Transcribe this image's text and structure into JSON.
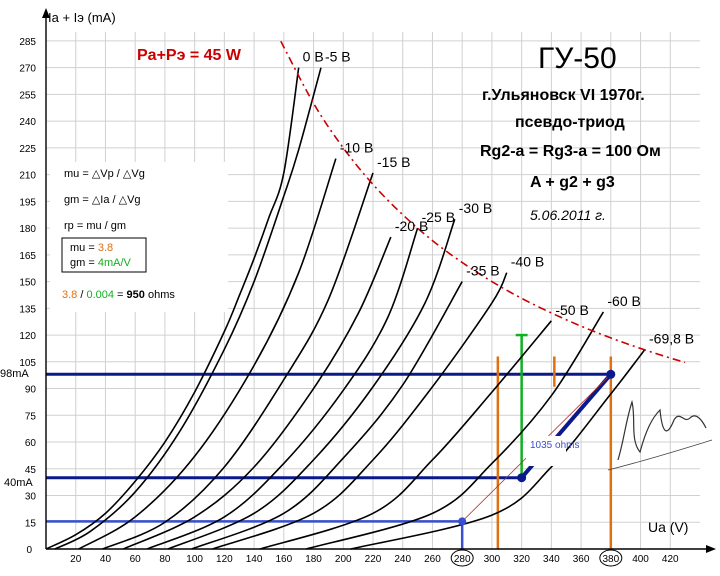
{
  "chart_data": {
    "type": "line",
    "title": "ГУ-50",
    "subtitle_lines": [
      "г.Ульяновск VI 1970г.",
      "псевдо-триод",
      "Rg2-a = Rg3-a = 100 Ом",
      "A + g2 + g3"
    ],
    "date_text": "5.06.2011 г.",
    "xlabel": "Ua (V)",
    "ylabel": "Ia + Iэ (mA)",
    "xlim": [
      0,
      440
    ],
    "ylim": [
      0,
      290
    ],
    "x_ticks": [
      20,
      40,
      60,
      80,
      100,
      120,
      140,
      160,
      180,
      200,
      220,
      240,
      260,
      280,
      300,
      320,
      340,
      360,
      380,
      400,
      420
    ],
    "y_ticks": [
      15,
      30,
      45,
      60,
      75,
      90,
      105,
      120,
      135,
      150,
      165,
      180,
      195,
      210,
      225,
      240,
      255,
      270,
      285
    ],
    "origin_label": "0",
    "circled_x_ticks": [
      280,
      380
    ],
    "grid": true,
    "power_curve": {
      "label": "Pa+Pэ = 45 W",
      "color": "#cc0000",
      "x": [
        158,
        180,
        200,
        220,
        240,
        260,
        280,
        300,
        320,
        340,
        360,
        380,
        400,
        420,
        430
      ],
      "y": [
        284.8,
        250,
        225,
        204.5,
        187.5,
        173,
        160.7,
        150,
        140.6,
        132.4,
        125,
        118.4,
        112.5,
        107.1,
        104.7
      ]
    },
    "series": [
      {
        "name": "0 В",
        "x": [
          0,
          20,
          40,
          60,
          80,
          100,
          120,
          130,
          140,
          150,
          160,
          170
        ],
        "y": [
          0,
          8,
          20,
          38,
          60,
          88,
          122,
          142,
          163,
          186,
          211,
          270
        ]
      },
      {
        "name": "-5 В",
        "x": [
          6,
          30,
          60,
          90,
          120,
          140,
          160,
          170,
          185
        ],
        "y": [
          0,
          10,
          32,
          66,
          112,
          150,
          198,
          224,
          270
        ]
      },
      {
        "name": "-10 В",
        "x": [
          22,
          60,
          100,
          140,
          170,
          195
        ],
        "y": [
          0,
          18,
          52,
          103,
          155,
          219
        ]
      },
      {
        "name": "-15 В",
        "x": [
          38,
          80,
          120,
          160,
          190,
          220
        ],
        "y": [
          0,
          15,
          46,
          95,
          140,
          211
        ]
      },
      {
        "name": "-20 В",
        "x": [
          52,
          100,
          140,
          180,
          210,
          232
        ],
        "y": [
          0,
          18,
          46,
          90,
          132,
          175
        ]
      },
      {
        "name": "-25 В",
        "x": [
          68,
          120,
          160,
          200,
          230,
          250
        ],
        "y": [
          0,
          18,
          48,
          89,
          130,
          180
        ]
      },
      {
        "name": "-30 В",
        "x": [
          82,
          140,
          180,
          220,
          255,
          275
        ],
        "y": [
          0,
          20,
          50,
          91,
          138,
          185
        ]
      },
      {
        "name": "-35 В",
        "x": [
          98,
          160,
          200,
          240,
          280
        ],
        "y": [
          0,
          20,
          51,
          92,
          150
        ]
      },
      {
        "name": "-40 В",
        "x": [
          112,
          180,
          220,
          260,
          300,
          310
        ],
        "y": [
          0,
          20,
          50,
          91,
          138,
          155
        ]
      },
      {
        "name": "-50 В",
        "x": [
          144,
          220,
          260,
          300,
          340
        ],
        "y": [
          0,
          20,
          50,
          88,
          128
        ]
      },
      {
        "name": "-60 В",
        "x": [
          175,
          260,
          300,
          340,
          375
        ],
        "y": [
          0,
          20,
          48,
          86,
          133
        ]
      },
      {
        "name": "-69,8 В",
        "x": [
          205,
          300,
          340,
          380,
          403
        ],
        "y": [
          0,
          19,
          46,
          87,
          112
        ]
      }
    ],
    "annotations": {
      "formulas": [
        "mu = △Vp / △Vg",
        "gm = △Ia / △Vg",
        "rp = mu / gm"
      ],
      "box_mu_prefix": "mu = ",
      "box_mu_value": "3.8",
      "box_gm_prefix": "gm = ",
      "box_gm_value": "4mA/V",
      "rp_mu": "3.8",
      "rp_slash": " / ",
      "rp_gm": "0.004",
      "rp_eq": " = ",
      "rp_value": "950",
      "rp_unit": " ohms",
      "load_line_label": "1035 ohms",
      "y_marks": [
        "98mA",
        "40mA"
      ],
      "signature": "signature"
    },
    "load_line": {
      "x": [
        320,
        380
      ],
      "y": [
        40,
        98
      ]
    },
    "marker_lines": [
      {
        "axis": "h",
        "y": 98,
        "x_from": 0,
        "x_to": 380,
        "color": "#0a1a8a"
      },
      {
        "axis": "h",
        "y": 40,
        "x_from": 0,
        "x_to": 320,
        "color": "#0a1a8a"
      },
      {
        "axis": "h",
        "y": 15.5,
        "x_from": 0,
        "x_to": 280,
        "color": "#3a4fd0"
      },
      {
        "axis": "v",
        "x": 280,
        "y_from": 0,
        "y_to": 15.5,
        "color": "#3a4fd0"
      },
      {
        "axis": "v",
        "x": 320,
        "y_from": 40,
        "y_to": 120,
        "color": "#10b020"
      },
      {
        "axis": "h",
        "y": 120,
        "x_from": 316,
        "x_to": 324,
        "color": "#10b020"
      },
      {
        "axis": "v",
        "x": 304,
        "y_from": 0,
        "y_to": 108,
        "color": "#e07010"
      },
      {
        "axis": "v",
        "x": 380,
        "y_from": 0,
        "y_to": 108,
        "color": "#e07010"
      },
      {
        "axis": "v",
        "x": 342,
        "y_from": 91,
        "y_to": 108,
        "color": "#e07010"
      }
    ]
  }
}
